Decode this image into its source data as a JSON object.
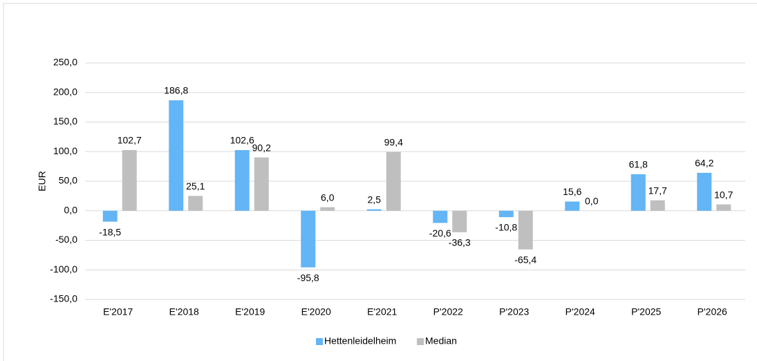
{
  "chart_data": {
    "type": "bar",
    "y_label": "EUR",
    "categories": [
      "E'2017",
      "E'2018",
      "E'2019",
      "E'2020",
      "E'2021",
      "P'2022",
      "P'2023",
      "P'2024",
      "P'2025",
      "P'2026"
    ],
    "series": [
      {
        "name": "Hettenleidelheim",
        "color": "#63b5f5",
        "values": [
          -18.5,
          186.8,
          102.6,
          -95.8,
          2.5,
          -20.6,
          -10.8,
          15.6,
          61.8,
          64.2
        ],
        "value_labels": [
          "-18,5",
          "186,8",
          "102,6",
          "-95,8",
          "2,5",
          "-20,6",
          "-10,8",
          "15,6",
          "61,8",
          "64,2"
        ]
      },
      {
        "name": "Median",
        "color": "#bfbfbf",
        "values": [
          102.7,
          25.1,
          90.2,
          6.0,
          99.4,
          -36.3,
          -65.4,
          0.0,
          17.7,
          10.7
        ],
        "value_labels": [
          "102,7",
          "25,1",
          "90,2",
          "6,0",
          "99,4",
          "-36,3",
          "-65,4",
          "0,0",
          "17,7",
          "10,7"
        ]
      }
    ],
    "ylim": [
      -150,
      250
    ],
    "yticks": [
      {
        "value": -150,
        "label": "-150,0"
      },
      {
        "value": -100,
        "label": "-100,0"
      },
      {
        "value": -50,
        "label": "-50,0"
      },
      {
        "value": 0,
        "label": "0,0"
      },
      {
        "value": 50,
        "label": "50,0"
      },
      {
        "value": 100,
        "label": "100,0"
      },
      {
        "value": 150,
        "label": "150,0"
      },
      {
        "value": 200,
        "label": "200,0"
      },
      {
        "value": 250,
        "label": "250,0"
      }
    ],
    "grid": true,
    "legend": "bottom"
  }
}
